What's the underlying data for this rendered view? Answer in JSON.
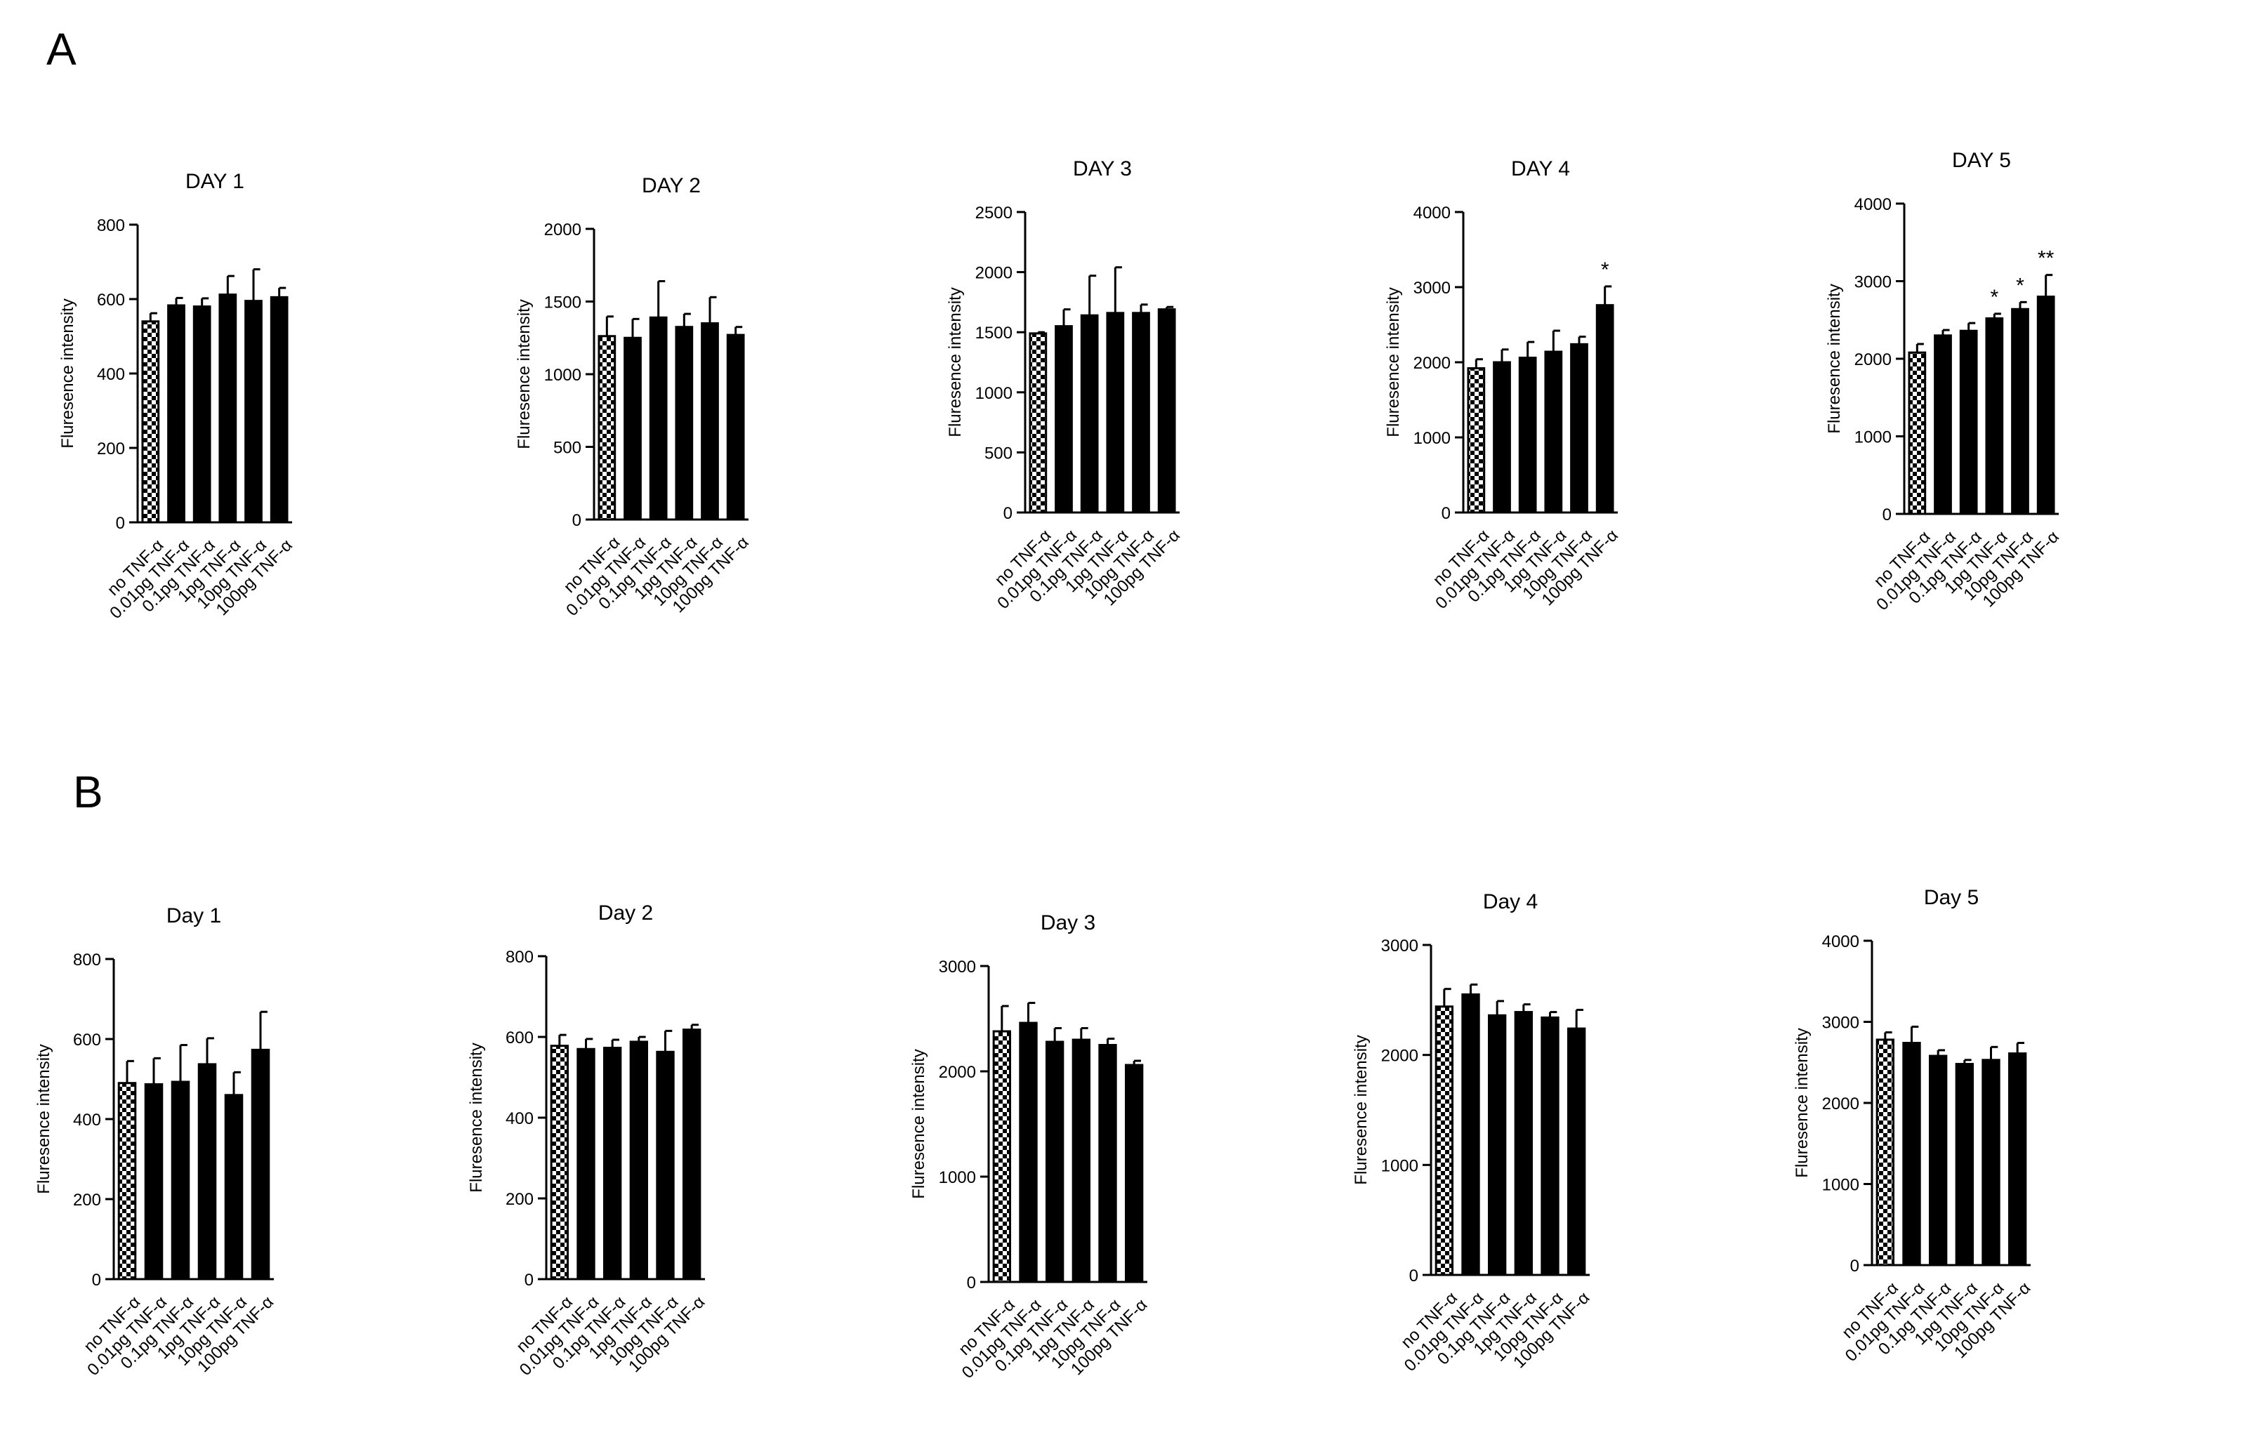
{
  "figure": {
    "panels": [
      {
        "letter": "A"
      },
      {
        "letter": "B"
      }
    ]
  },
  "chart_data": [
    {
      "panel": "A",
      "type": "bar",
      "title": "DAY 1",
      "xlabel": "",
      "ylabel": "Fluresence intensity",
      "categories": [
        "no TNF-α",
        "0.01pg TNF-α",
        "0.1pg TNF-α",
        "1pg TNF-α",
        "10pg TNF-α",
        "100pg TNF-α"
      ],
      "values": [
        540,
        583,
        580,
        612,
        595,
        605
      ],
      "errors": [
        22,
        20,
        22,
        50,
        85,
        25
      ],
      "significance": [
        "",
        "",
        "",
        "",
        "",
        ""
      ],
      "ylim": [
        0,
        800
      ],
      "yticks": [
        0,
        200,
        400,
        600,
        800
      ],
      "control_pattern": "checkerboard",
      "bar_color": "#000000"
    },
    {
      "panel": "A",
      "type": "bar",
      "title": "DAY 2",
      "xlabel": "",
      "ylabel": "Fluresence intensity",
      "categories": [
        "no TNF-α",
        "0.01pg TNF-α",
        "0.1pg TNF-α",
        "1pg TNF-α",
        "10pg TNF-α",
        "100pg TNF-α"
      ],
      "values": [
        1262,
        1250,
        1390,
        1325,
        1350,
        1270
      ],
      "errors": [
        135,
        130,
        250,
        90,
        180,
        55
      ],
      "significance": [
        "",
        "",
        "",
        "",
        "",
        ""
      ],
      "ylim": [
        0,
        2000
      ],
      "yticks": [
        0,
        500,
        1000,
        1500,
        2000
      ],
      "control_pattern": "checkerboard",
      "bar_color": "#000000"
    },
    {
      "panel": "A",
      "type": "bar",
      "title": "DAY 3",
      "xlabel": "",
      "ylabel": "Fluresence intensity",
      "categories": [
        "no TNF-α",
        "0.01pg TNF-α",
        "0.1pg TNF-α",
        "1pg TNF-α",
        "10pg TNF-α",
        "100pg TNF-α"
      ],
      "values": [
        1490,
        1550,
        1640,
        1660,
        1660,
        1690
      ],
      "errors": [
        10,
        140,
        330,
        380,
        70,
        20
      ],
      "significance": [
        "",
        "",
        "",
        "",
        "",
        ""
      ],
      "ylim": [
        0,
        2500
      ],
      "yticks": [
        0,
        500,
        1000,
        1500,
        2000,
        2500
      ],
      "control_pattern": "checkerboard",
      "bar_color": "#000000"
    },
    {
      "panel": "A",
      "type": "bar",
      "title": "DAY 4",
      "xlabel": "",
      "ylabel": "Fluresence intensity",
      "categories": [
        "no TNF-α",
        "0.01pg TNF-α",
        "0.1pg TNF-α",
        "1pg TNF-α",
        "10pg TNF-α",
        "100pg TNF-α"
      ],
      "values": [
        1920,
        2000,
        2060,
        2140,
        2240,
        2760
      ],
      "errors": [
        120,
        170,
        210,
        280,
        100,
        250
      ],
      "significance": [
        "",
        "",
        "",
        "",
        "",
        "*"
      ],
      "ylim": [
        0,
        4000
      ],
      "yticks": [
        0,
        1000,
        2000,
        3000,
        4000
      ],
      "control_pattern": "checkerboard",
      "bar_color": "#000000"
    },
    {
      "panel": "A",
      "type": "bar",
      "title": "DAY 5",
      "xlabel": "",
      "ylabel": "Fluresence intensity",
      "categories": [
        "no TNF-α",
        "0.01pg TNF-α",
        "0.1pg TNF-α",
        "1pg TNF-α",
        "10pg TNF-α",
        "100pg TNF-α"
      ],
      "values": [
        2080,
        2300,
        2360,
        2520,
        2640,
        2800
      ],
      "errors": [
        110,
        70,
        100,
        60,
        90,
        280
      ],
      "significance": [
        "",
        "",
        "",
        "*",
        "*",
        "**"
      ],
      "ylim": [
        0,
        4000
      ],
      "yticks": [
        0,
        1000,
        2000,
        3000,
        4000
      ],
      "control_pattern": "checkerboard",
      "bar_color": "#000000"
    },
    {
      "panel": "B",
      "type": "bar",
      "title": "Day 1",
      "xlabel": "",
      "ylabel": "Fluresence intensity",
      "categories": [
        "no TNF-α",
        "0.01pg TNF-α",
        "0.1pg TNF-α",
        "1pg TNF-α",
        "10pg TNF-α",
        "100pg TNF-α"
      ],
      "values": [
        490,
        487,
        493,
        537,
        460,
        573
      ],
      "errors": [
        55,
        65,
        92,
        65,
        57,
        95
      ],
      "significance": [
        "",
        "",
        "",
        "",
        "",
        ""
      ],
      "ylim": [
        0,
        800
      ],
      "yticks": [
        0,
        200,
        400,
        600,
        800
      ],
      "control_pattern": "checkerboard",
      "bar_color": "#000000"
    },
    {
      "panel": "B",
      "type": "bar",
      "title": "Day 2",
      "xlabel": "",
      "ylabel": "Fluresence intensity",
      "categories": [
        "no TNF-α",
        "0.01pg TNF-α",
        "0.1pg TNF-α",
        "1pg TNF-α",
        "10pg TNF-α",
        "100pg TNF-α"
      ],
      "values": [
        578,
        570,
        573,
        588,
        563,
        618
      ],
      "errors": [
        27,
        25,
        20,
        12,
        52,
        12
      ],
      "significance": [
        "",
        "",
        "",
        "",
        "",
        ""
      ],
      "ylim": [
        0,
        800
      ],
      "yticks": [
        0,
        200,
        400,
        600,
        800
      ],
      "control_pattern": "checkerboard",
      "bar_color": "#000000"
    },
    {
      "panel": "B",
      "type": "bar",
      "title": "Day 3",
      "xlabel": "",
      "ylabel": "Fluresence intensity",
      "categories": [
        "no TNF-α",
        "0.01pg TNF-α",
        "0.1pg TNF-α",
        "1pg TNF-α",
        "10pg TNF-α",
        "100pg TNF-α"
      ],
      "values": [
        2380,
        2460,
        2280,
        2300,
        2250,
        2060
      ],
      "errors": [
        240,
        190,
        130,
        110,
        60,
        40
      ],
      "significance": [
        "",
        "",
        "",
        "",
        "",
        ""
      ],
      "ylim": [
        0,
        3000
      ],
      "yticks": [
        0,
        1000,
        2000,
        3000
      ],
      "control_pattern": "checkerboard",
      "bar_color": "#000000"
    },
    {
      "panel": "B",
      "type": "bar",
      "title": "Day 4",
      "xlabel": "",
      "ylabel": "Fluresence intensity",
      "categories": [
        "no TNF-α",
        "0.01pg TNF-α",
        "0.1pg TNF-α",
        "1pg TNF-α",
        "10pg TNF-α",
        "100pg TNF-α"
      ],
      "values": [
        2440,
        2550,
        2360,
        2390,
        2340,
        2240
      ],
      "errors": [
        160,
        90,
        130,
        70,
        50,
        170
      ],
      "significance": [
        "",
        "",
        "",
        "",
        "",
        ""
      ],
      "ylim": [
        0,
        3000
      ],
      "yticks": [
        0,
        1000,
        2000,
        3000
      ],
      "control_pattern": "checkerboard",
      "bar_color": "#000000"
    },
    {
      "panel": "B",
      "type": "bar",
      "title": "Day 5",
      "xlabel": "",
      "ylabel": "Fluresence intensity",
      "categories": [
        "no TNF-α",
        "0.01pg TNF-α",
        "0.1pg TNF-α",
        "1pg TNF-α",
        "10pg TNF-α",
        "100pg TNF-α"
      ],
      "values": [
        2780,
        2740,
        2580,
        2480,
        2530,
        2610
      ],
      "errors": [
        90,
        200,
        70,
        50,
        160,
        130
      ],
      "significance": [
        "",
        "",
        "",
        "",
        "",
        ""
      ],
      "ylim": [
        0,
        4000
      ],
      "yticks": [
        0,
        1000,
        2000,
        3000,
        4000
      ],
      "control_pattern": "checkerboard",
      "bar_color": "#000000"
    }
  ]
}
